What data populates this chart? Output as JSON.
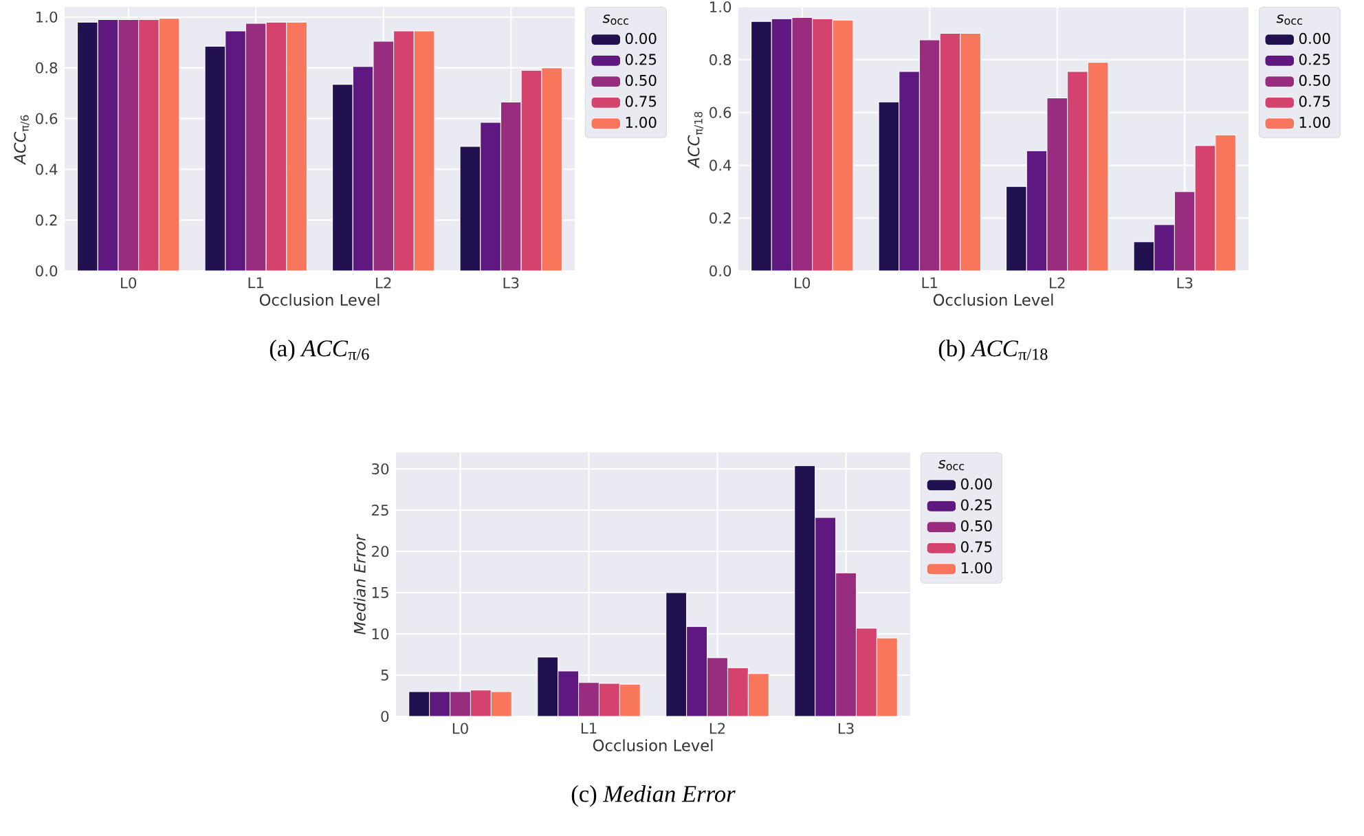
{
  "chart_data": [
    {
      "type": "bar",
      "title": "(a) *ACC*$_{π/6}$",
      "xlabel": "Occlusion Level",
      "ylabel": "*ACC*$_{π/6}$",
      "legend_title": "*s*$_{occ}$",
      "legend": "right",
      "grid": true,
      "categories": [
        "L0",
        "L1",
        "L2",
        "L3"
      ],
      "ylim": [
        0,
        1.04
      ],
      "yticks": [
        {
          "value": 0,
          "label": "0.0"
        },
        {
          "value": 0.2,
          "label": "0.2"
        },
        {
          "value": 0.4,
          "label": "0.4"
        },
        {
          "value": 0.6,
          "label": "0.6"
        },
        {
          "value": 0.8,
          "label": "0.8"
        },
        {
          "value": 1,
          "label": "1.0"
        }
      ],
      "series": [
        {
          "name": "0.00",
          "color": "#221150",
          "values": [
            0.98,
            0.885,
            0.735,
            0.49
          ]
        },
        {
          "name": "0.25",
          "color": "#5f187f",
          "values": [
            0.99,
            0.945,
            0.805,
            0.585
          ]
        },
        {
          "name": "0.50",
          "color": "#982d80",
          "values": [
            0.99,
            0.975,
            0.905,
            0.665
          ]
        },
        {
          "name": "0.75",
          "color": "#d3436e",
          "values": [
            0.99,
            0.98,
            0.945,
            0.79
          ]
        },
        {
          "name": "1.00",
          "color": "#f8765c",
          "values": [
            0.995,
            0.98,
            0.945,
            0.8
          ]
        }
      ]
    },
    {
      "type": "bar",
      "title": "(b) *ACC*$_{π/18}$",
      "xlabel": "Occlusion Level",
      "ylabel": "*ACC*$_{π/18}$",
      "legend_title": "*s*$_{occ}$",
      "legend": "right",
      "grid": true,
      "categories": [
        "L0",
        "L1",
        "L2",
        "L3"
      ],
      "ylim": [
        0,
        1.0
      ],
      "yticks": [
        {
          "value": 0,
          "label": "0.0"
        },
        {
          "value": 0.2,
          "label": "0.2"
        },
        {
          "value": 0.4,
          "label": "0.4"
        },
        {
          "value": 0.6,
          "label": "0.6"
        },
        {
          "value": 0.8,
          "label": "0.8"
        },
        {
          "value": 1,
          "label": "1.0"
        }
      ],
      "series": [
        {
          "name": "0.00",
          "color": "#221150",
          "values": [
            0.945,
            0.64,
            0.32,
            0.11
          ]
        },
        {
          "name": "0.25",
          "color": "#5f187f",
          "values": [
            0.955,
            0.755,
            0.455,
            0.175
          ]
        },
        {
          "name": "0.50",
          "color": "#982d80",
          "values": [
            0.96,
            0.875,
            0.655,
            0.3
          ]
        },
        {
          "name": "0.75",
          "color": "#d3436e",
          "values": [
            0.955,
            0.9,
            0.755,
            0.475
          ]
        },
        {
          "name": "1.00",
          "color": "#f8765c",
          "values": [
            0.95,
            0.9,
            0.79,
            0.515
          ]
        }
      ]
    },
    {
      "type": "bar",
      "title": "(c) *Median Error*",
      "xlabel": "Occlusion Level",
      "ylabel": "*Median Error*",
      "legend_title": "*s*$_{occ}$",
      "legend": "right",
      "grid": true,
      "categories": [
        "L0",
        "L1",
        "L2",
        "L3"
      ],
      "ylim": [
        0,
        32
      ],
      "yticks": [
        0,
        5,
        10,
        15,
        20,
        25,
        30
      ],
      "series": [
        {
          "name": "0.00",
          "color": "#221150",
          "values": [
            3.0,
            7.2,
            15.0,
            30.4
          ]
        },
        {
          "name": "0.25",
          "color": "#5f187f",
          "values": [
            3.0,
            5.5,
            10.9,
            24.1
          ]
        },
        {
          "name": "0.50",
          "color": "#982d80",
          "values": [
            3.0,
            4.1,
            7.1,
            17.4
          ]
        },
        {
          "name": "0.75",
          "color": "#d3436e",
          "values": [
            3.2,
            4.0,
            5.9,
            10.7
          ]
        },
        {
          "name": "1.00",
          "color": "#f8765c",
          "values": [
            3.0,
            3.9,
            5.2,
            9.5
          ]
        }
      ]
    }
  ]
}
